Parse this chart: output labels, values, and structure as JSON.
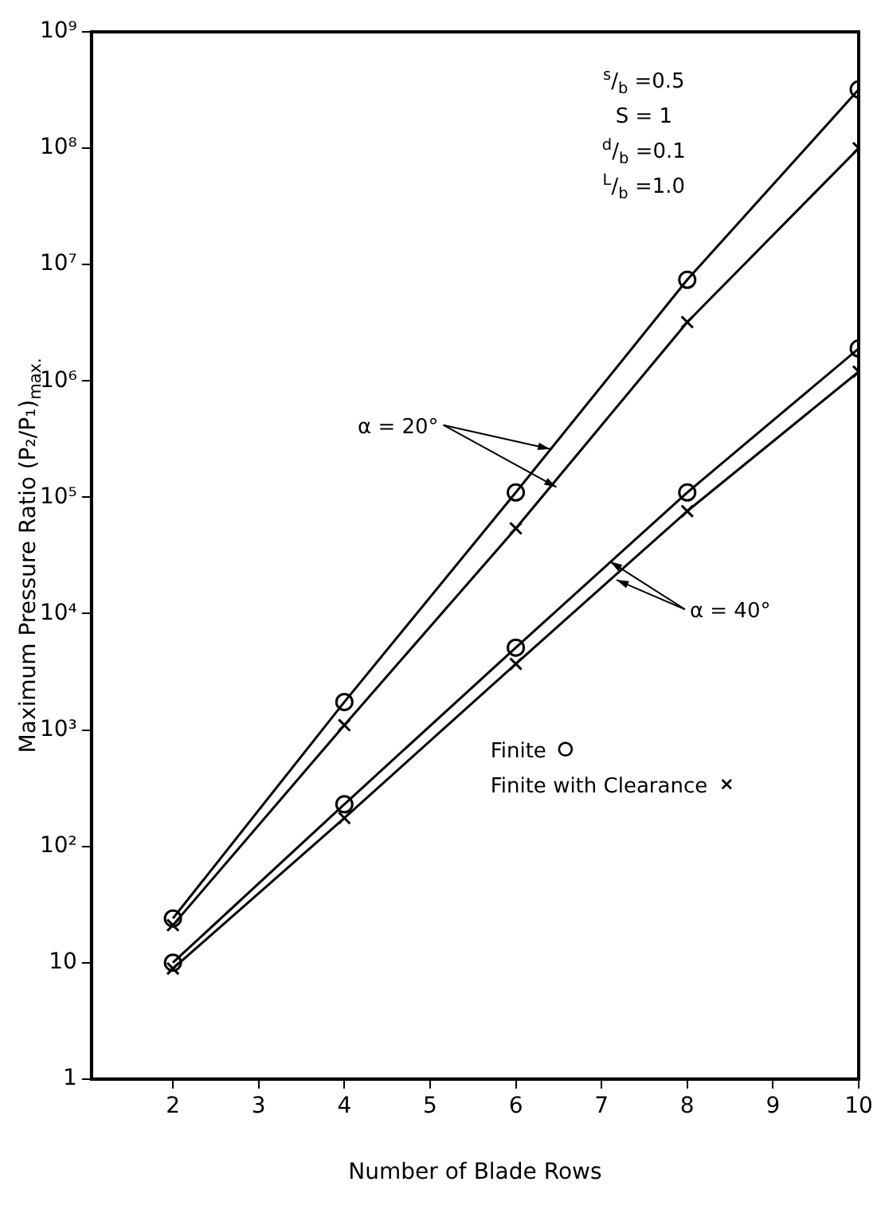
{
  "chart_data": {
    "type": "line",
    "xlabel": "Number of Blade Rows",
    "ylabel": "Maximum Pressure Ratio (P₂/P₁)$_{max.}$",
    "x": [
      2,
      4,
      6,
      8,
      10
    ],
    "series": [
      {
        "name": "Finite",
        "color": "#000000",
        "marker": "circle",
        "values": [
          24,
          1740,
          110000,
          7400000,
          320000000
        ]
      },
      {
        "name": "Finite with Clearance",
        "color": "#000000",
        "marker": "cross",
        "values": [
          21,
          1100,
          54000,
          3200000,
          100000000
        ]
      },
      {
        "color": "#000000",
        "marker": "circle",
        "values": [
          10,
          230,
          5100,
          110000,
          1900000
        ]
      },
      {
        "color": "#000000",
        "marker": "cross",
        "values": [
          8.9,
          175,
          3700,
          76000,
          1200000
        ]
      }
    ],
    "log": "y",
    "xlim": [
      1.05,
      10
    ],
    "xticks": [
      2,
      3,
      4,
      5,
      6,
      7,
      8,
      9,
      10
    ],
    "ylim": [
      1,
      1000000000
    ],
    "yticks": [
      1,
      10,
      {
        "value": 100,
        "label": "10²"
      },
      {
        "value": 1000,
        "label": "10³"
      },
      {
        "value": 10000,
        "label": "10⁴"
      },
      {
        "value": 100000,
        "label": "10⁵"
      },
      {
        "value": 1000000,
        "label": "10⁶"
      },
      {
        "value": 10000000,
        "label": "10⁷"
      },
      {
        "value": 100000000,
        "label": "10⁸"
      },
      {
        "value": 1000000000,
        "label": "10⁹"
      }
    ],
    "grid": false,
    "legend": "right",
    "line_style": "solid",
    "annotations": [
      "$^{s}$/$_{b}$ =0.5",
      "S = 1",
      "$^{d}$/$_{b}$ =0.1",
      "$^{L}$/$_{b}$ =1.0",
      {
        "text": "α = 20°",
        "x": 6.4,
        "y": 260000
      },
      {
        "text": "α = 40°",
        "x": 7.1,
        "y": 28000
      }
    ]
  }
}
